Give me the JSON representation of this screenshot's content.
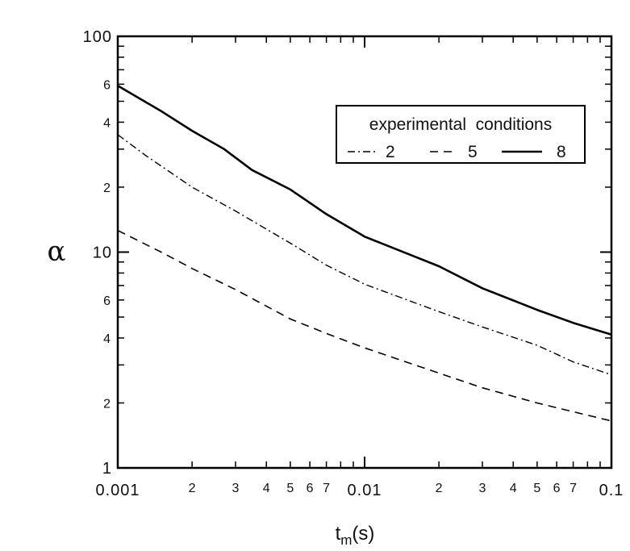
{
  "chart_data": {
    "type": "line",
    "x_scale": "log",
    "y_scale": "log",
    "xlim": [
      0.001,
      0.1
    ],
    "ylim": [
      1,
      100
    ],
    "xlabel": "t",
    "xlabel_subscript": "m",
    "xlabel_unit": "(s)",
    "ylabel": "α",
    "x_major_ticks": [
      {
        "value": 0.001,
        "label": "0.001"
      },
      {
        "value": 0.01,
        "label": "0.01"
      },
      {
        "value": 0.1,
        "label": "0.1"
      }
    ],
    "x_minor_ticks": [
      {
        "value": 0.002,
        "label": "2"
      },
      {
        "value": 0.003,
        "label": "3"
      },
      {
        "value": 0.004,
        "label": "4"
      },
      {
        "value": 0.005,
        "label": "5"
      },
      {
        "value": 0.006,
        "label": "6"
      },
      {
        "value": 0.007,
        "label": "7"
      },
      {
        "value": 0.02,
        "label": "2"
      },
      {
        "value": 0.03,
        "label": "3"
      },
      {
        "value": 0.04,
        "label": "4"
      },
      {
        "value": 0.05,
        "label": "5"
      },
      {
        "value": 0.06,
        "label": "6"
      },
      {
        "value": 0.07,
        "label": "7"
      }
    ],
    "y_major_ticks": [
      {
        "value": 1,
        "label": "1"
      },
      {
        "value": 10,
        "label": "10"
      },
      {
        "value": 100,
        "label": "100"
      }
    ],
    "y_minor_ticks": [
      {
        "value": 2,
        "label": "2"
      },
      {
        "value": 4,
        "label": "4"
      },
      {
        "value": 6,
        "label": "6"
      },
      {
        "value": 20,
        "label": "2"
      },
      {
        "value": 40,
        "label": "4"
      },
      {
        "value": 60,
        "label": "6"
      }
    ],
    "grid": false,
    "legend": {
      "title": "experimental  conditions",
      "placement": "top-right"
    },
    "series": [
      {
        "name": "2",
        "style": "dash-dot",
        "color": "#000000",
        "points": [
          [
            0.001,
            35
          ],
          [
            0.0013,
            28
          ],
          [
            0.002,
            20
          ],
          [
            0.003,
            15.5
          ],
          [
            0.005,
            11
          ],
          [
            0.007,
            8.7
          ],
          [
            0.01,
            7.1
          ],
          [
            0.02,
            5.3
          ],
          [
            0.03,
            4.5
          ],
          [
            0.05,
            3.7
          ],
          [
            0.07,
            3.1
          ],
          [
            0.1,
            2.7
          ]
        ]
      },
      {
        "name": "5",
        "style": "dashed",
        "color": "#000000",
        "points": [
          [
            0.001,
            12.6
          ],
          [
            0.0015,
            10
          ],
          [
            0.002,
            8.4
          ],
          [
            0.003,
            6.7
          ],
          [
            0.005,
            4.9
          ],
          [
            0.007,
            4.2
          ],
          [
            0.01,
            3.6
          ],
          [
            0.02,
            2.75
          ],
          [
            0.03,
            2.35
          ],
          [
            0.05,
            2.0
          ],
          [
            0.07,
            1.82
          ],
          [
            0.1,
            1.65
          ]
        ]
      },
      {
        "name": "8",
        "style": "solid",
        "color": "#000000",
        "points": [
          [
            0.001,
            59
          ],
          [
            0.0015,
            45
          ],
          [
            0.002,
            36.5
          ],
          [
            0.0027,
            30
          ],
          [
            0.0035,
            24
          ],
          [
            0.005,
            19.5
          ],
          [
            0.007,
            15
          ],
          [
            0.01,
            11.8
          ],
          [
            0.02,
            8.6
          ],
          [
            0.03,
            6.8
          ],
          [
            0.05,
            5.4
          ],
          [
            0.07,
            4.7
          ],
          [
            0.1,
            4.15
          ]
        ]
      }
    ]
  }
}
